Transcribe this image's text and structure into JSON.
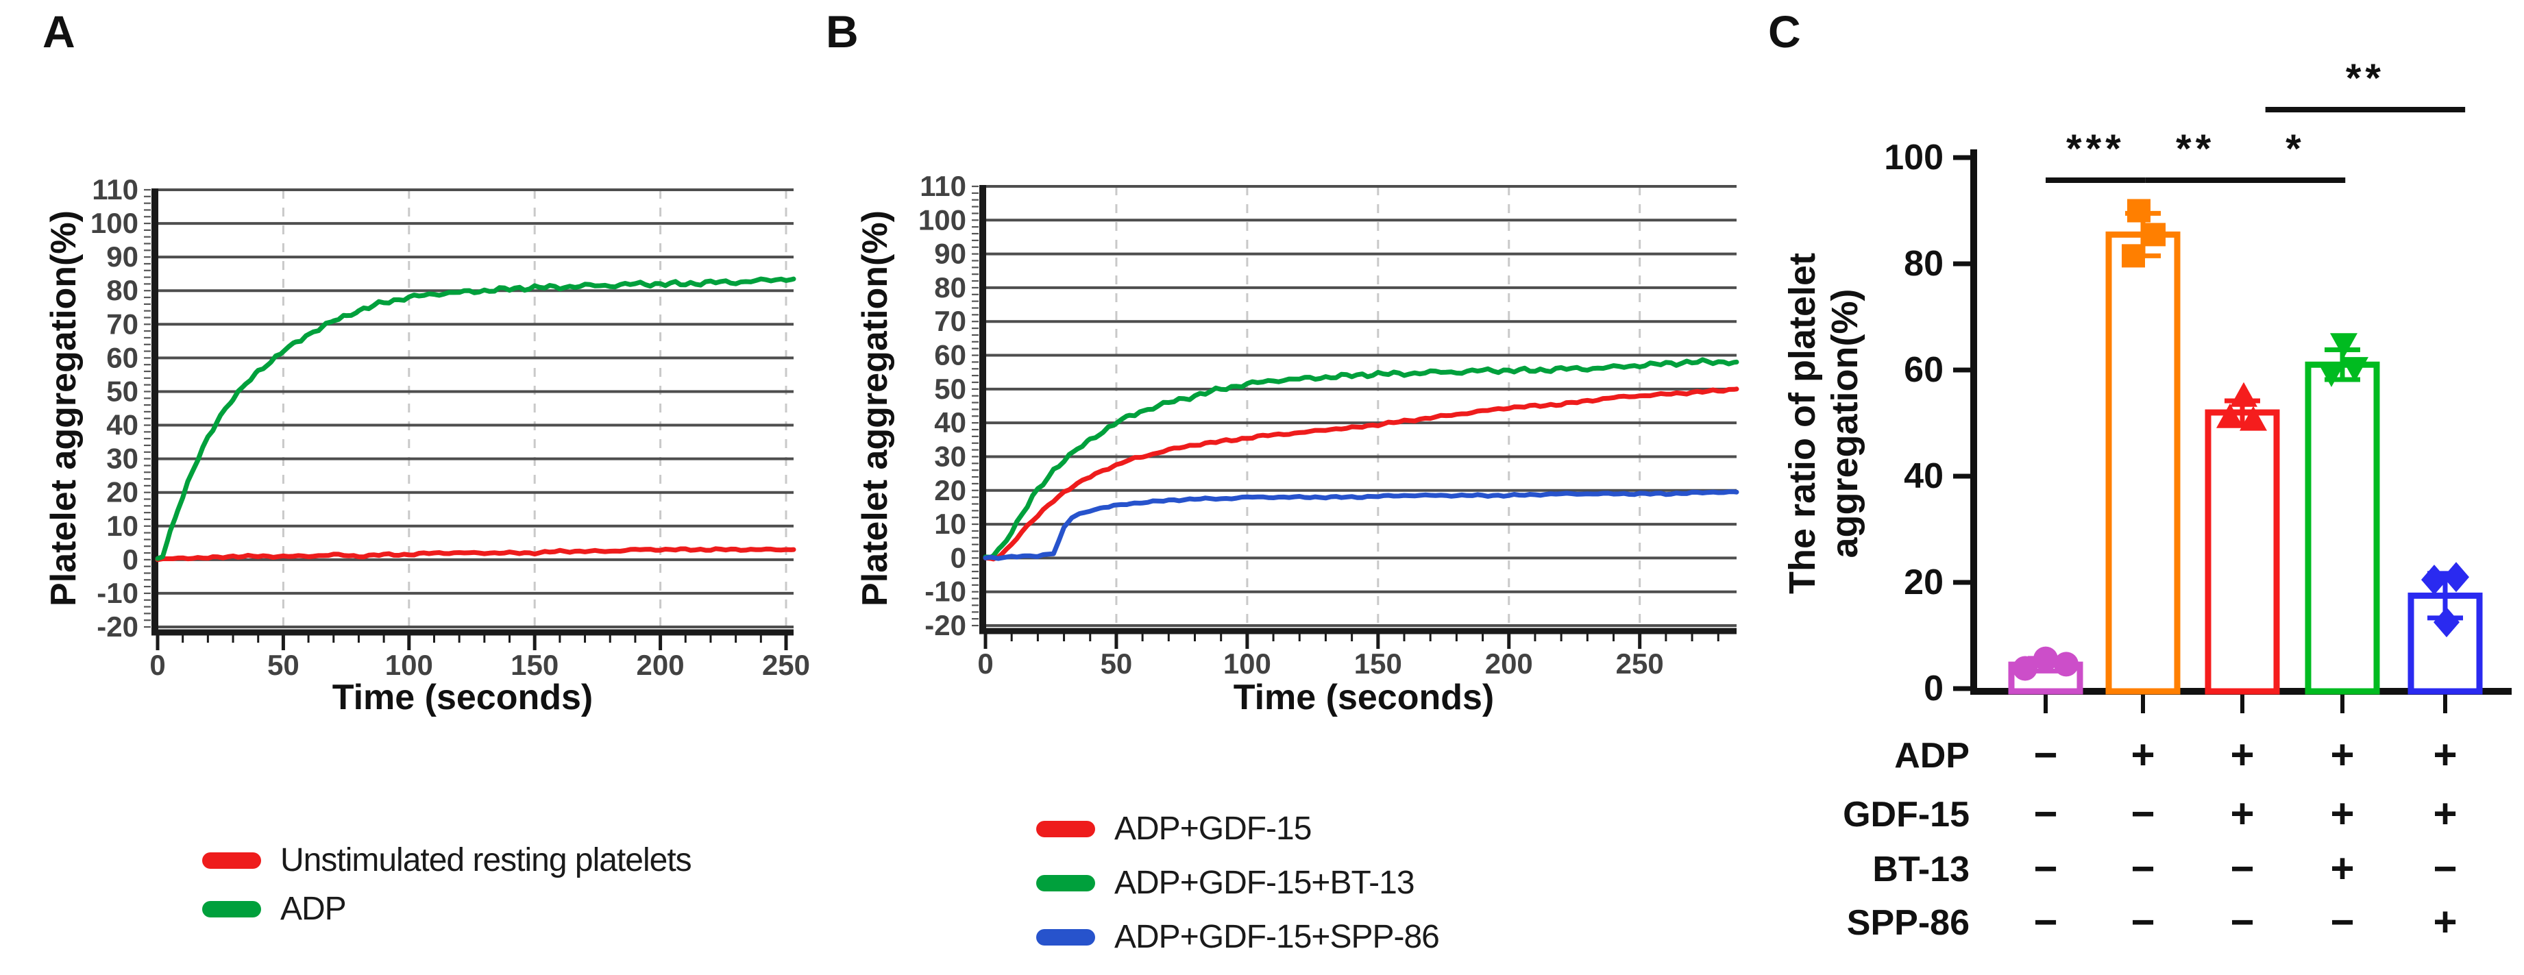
{
  "figure": {
    "panel_labels": {
      "a": "A",
      "b": "B",
      "c": "C"
    }
  },
  "chart_data": [
    {
      "id": "A",
      "type": "line",
      "xlabel": "Time (seconds)",
      "ylabel": "Platelet aggregation(%)",
      "xlim": [
        0,
        253
      ],
      "ylim": [
        -20,
        110
      ],
      "xticks": [
        0,
        50,
        100,
        150,
        200,
        250
      ],
      "yticks": [
        110,
        100,
        90,
        80,
        70,
        60,
        50,
        40,
        30,
        20,
        10,
        0,
        -10,
        -20
      ],
      "grid": {
        "horizontal": "solid",
        "vertical": "dashed-at-xticks"
      },
      "legend_position": "below-left",
      "series": [
        {
          "name": "Unstimulated resting platelets",
          "color": "#ee1c1c",
          "noise": 0.35,
          "x": [
            0,
            10,
            20,
            30,
            40,
            50,
            60,
            70,
            80,
            90,
            100,
            110,
            120,
            130,
            140,
            150,
            160,
            170,
            180,
            190,
            200,
            210,
            220,
            230,
            240,
            250,
            253
          ],
          "y": [
            0,
            0.5,
            0.5,
            1,
            1,
            1,
            1,
            1.5,
            1,
            1.5,
            1.5,
            2,
            2,
            2,
            2,
            2,
            2.5,
            2.5,
            2.5,
            3,
            3,
            3,
            3,
            3,
            3,
            3,
            3
          ]
        },
        {
          "name": "ADP",
          "color": "#00a03c",
          "noise": 0.8,
          "x": [
            0,
            2,
            5,
            8,
            12,
            16,
            20,
            25,
            30,
            35,
            40,
            45,
            50,
            55,
            60,
            65,
            70,
            75,
            80,
            90,
            100,
            110,
            120,
            130,
            140,
            150,
            160,
            170,
            180,
            190,
            200,
            210,
            220,
            230,
            240,
            250,
            253
          ],
          "y": [
            0,
            1,
            8,
            15,
            23,
            30,
            36,
            43,
            48,
            52,
            56,
            59,
            62,
            64.5,
            67,
            69,
            71,
            72.5,
            74,
            76.5,
            78,
            79,
            79.5,
            80,
            80.5,
            81,
            81,
            81.5,
            81.5,
            82,
            82,
            82,
            82.5,
            82.5,
            83,
            83.5,
            83.5
          ]
        }
      ],
      "legend": [
        {
          "label": "Unstimulated resting platelets",
          "color": "#ee1c1c"
        },
        {
          "label": "ADP",
          "color": "#00a03c"
        }
      ]
    },
    {
      "id": "B",
      "type": "line",
      "xlabel": "Time (seconds)",
      "ylabel": "Platelet aggregation(%)",
      "xlim": [
        0,
        287
      ],
      "ylim": [
        -20,
        110
      ],
      "xticks": [
        0,
        50,
        100,
        150,
        200,
        250
      ],
      "yticks": [
        110,
        100,
        90,
        80,
        70,
        60,
        50,
        40,
        30,
        20,
        10,
        0,
        -10,
        -20
      ],
      "grid": {
        "horizontal": "solid",
        "vertical": "dashed-at-xticks"
      },
      "legend_position": "below-left",
      "series": [
        {
          "name": "ADP+GDF-15",
          "color": "#ee1c1c",
          "noise": 0.4,
          "x": [
            0,
            3,
            6,
            10,
            14,
            18,
            22,
            26,
            30,
            35,
            40,
            45,
            50,
            55,
            60,
            70,
            80,
            90,
            100,
            110,
            120,
            130,
            140,
            150,
            160,
            170,
            180,
            190,
            200,
            210,
            220,
            230,
            240,
            250,
            260,
            270,
            280,
            287
          ],
          "y": [
            0,
            -0.5,
            1,
            4,
            8,
            11,
            14,
            17,
            19.5,
            22,
            24,
            26,
            27.5,
            29,
            30,
            32,
            33.5,
            34.5,
            35.5,
            36.5,
            37,
            38,
            38.5,
            39.5,
            40.5,
            41.5,
            42.5,
            43.5,
            44.5,
            45,
            45.5,
            46.5,
            47.5,
            48,
            48.5,
            49,
            49.5,
            50
          ]
        },
        {
          "name": "ADP+GDF-15+BT-13",
          "color": "#00a03c",
          "noise": 0.75,
          "x": [
            0,
            3,
            6,
            10,
            14,
            18,
            22,
            26,
            30,
            35,
            40,
            45,
            50,
            55,
            60,
            70,
            80,
            90,
            100,
            110,
            120,
            130,
            140,
            150,
            160,
            170,
            180,
            190,
            200,
            210,
            220,
            230,
            240,
            250,
            260,
            270,
            280,
            287
          ],
          "y": [
            0,
            0.5,
            3,
            8,
            13,
            18,
            22,
            26,
            29,
            32,
            35,
            37.5,
            40,
            42,
            43.5,
            46,
            48,
            50,
            51.5,
            52.5,
            53,
            53.5,
            54,
            54.5,
            54.5,
            55,
            55,
            55.5,
            55.5,
            55.5,
            56,
            56,
            56.5,
            57,
            57.5,
            58,
            58,
            58
          ]
        },
        {
          "name": "ADP+GDF-15+SPP-86",
          "color": "#2753cc",
          "noise": 0.3,
          "x": [
            0,
            5,
            10,
            15,
            20,
            23,
            26,
            28,
            30,
            33,
            36,
            40,
            45,
            50,
            55,
            60,
            70,
            80,
            90,
            100,
            120,
            140,
            160,
            180,
            200,
            220,
            240,
            260,
            280,
            287
          ],
          "y": [
            0,
            0,
            0.5,
            0.5,
            0.5,
            1,
            1.5,
            5,
            9,
            12,
            13,
            14,
            15,
            15.5,
            16,
            16.5,
            17,
            17.5,
            17.5,
            18,
            18,
            18,
            18.5,
            18.5,
            18.5,
            19,
            19,
            19,
            19.5,
            19.5
          ]
        }
      ],
      "legend": [
        {
          "label": "ADP+GDF-15",
          "color": "#ee1c1c"
        },
        {
          "label": "ADP+GDF-15+BT-13",
          "color": "#00a03c"
        },
        {
          "label": "ADP+GDF-15+SPP-86",
          "color": "#2753cc"
        }
      ]
    },
    {
      "id": "C",
      "type": "bar",
      "ylabel_lines": [
        "The ratio of platelet",
        "aggregation(%)"
      ],
      "ylim": [
        0,
        100
      ],
      "yticks": [
        0,
        20,
        40,
        60,
        80,
        100
      ],
      "bars": [
        {
          "name": "Resting",
          "value": 4.5,
          "error": 1.2,
          "color": "#cc4ec9",
          "marker": "circle",
          "points": [
            [
              -30,
              3.8
            ],
            [
              0,
              5.6
            ],
            [
              30,
              4.6
            ]
          ]
        },
        {
          "name": "ADP",
          "value": 85.5,
          "error": 4,
          "color": "#ff7f00",
          "marker": "square",
          "points": [
            [
              -6,
              90
            ],
            [
              16,
              85.5
            ],
            [
              -14,
              81.5
            ]
          ]
        },
        {
          "name": "ADP+GDF-15",
          "value": 52,
          "error": 2.2,
          "color": "#f51d1d",
          "marker": "triangle-up",
          "points": [
            [
              2,
              55
            ],
            [
              -18,
              51
            ],
            [
              16,
              50.5
            ]
          ]
        },
        {
          "name": "ADP+GDF-15+BT-13",
          "value": 61,
          "error": 2.8,
          "color": "#00bb20",
          "marker": "triangle-down",
          "points": [
            [
              2,
              65
            ],
            [
              -16,
              59.5
            ],
            [
              18,
              60.5
            ]
          ]
        },
        {
          "name": "ADP+GDF-15+SPP-86",
          "value": 17.5,
          "error": 4.2,
          "color": "#2a2af0",
          "marker": "diamond",
          "points": [
            [
              -16,
              20.5
            ],
            [
              16,
              21
            ],
            [
              2,
              12.5
            ]
          ]
        }
      ],
      "significance": [
        {
          "from": 1,
          "to": 2,
          "label": "***",
          "row": 0
        },
        {
          "from": 2,
          "to": 3,
          "label": "**",
          "row": 0
        },
        {
          "from": 3,
          "to": 4,
          "label": "*",
          "row": 0
        },
        {
          "from": 3.2,
          "to": 5.2,
          "label": "**",
          "row": 1
        }
      ],
      "condition_matrix": {
        "rows": [
          {
            "label": "ADP",
            "values": [
              "−",
              "+",
              "+",
              "+",
              "+"
            ]
          },
          {
            "label": "GDF-15",
            "values": [
              "−",
              "−",
              "+",
              "+",
              "+"
            ]
          },
          {
            "label": "BT-13",
            "values": [
              "−",
              "−",
              "−",
              "+",
              "−"
            ]
          },
          {
            "label": "SPP-86",
            "values": [
              "−",
              "−",
              "−",
              "−",
              "+"
            ]
          }
        ]
      }
    }
  ]
}
